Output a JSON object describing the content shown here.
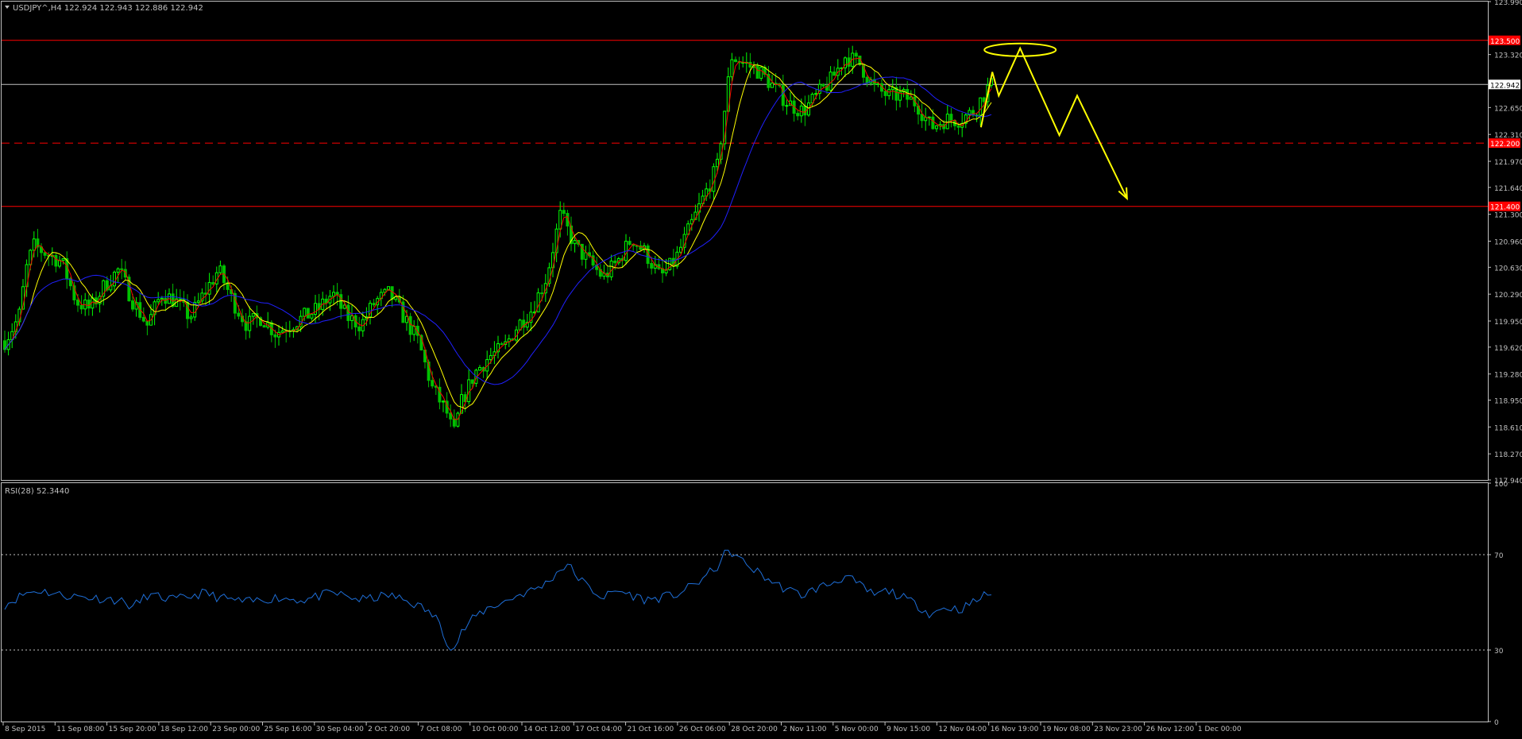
{
  "header": {
    "symbol_line": "USDJPY^,H4  122.924 122.943 122.886 122.942",
    "rsi_label": "RSI(28) 52.3440"
  },
  "colors": {
    "background": "#000000",
    "frame": "#c0c0c0",
    "bull_candle": "#00ff00",
    "bear_candle": "#00c000",
    "ma_fast": "#ff0000",
    "ma_mid": "#ffff00",
    "ma_slow": "#2020ff",
    "rsi": "#1e6fd9",
    "resistance_line": "#ff0000",
    "projection": "#ffff00",
    "price_tag": "#ff0000",
    "text": "#c0c0c0"
  },
  "chart_data": [
    {
      "type": "candlestick",
      "timeframe": "H4",
      "symbol": "USDJPY^",
      "ohlc_current": {
        "open": 122.924,
        "high": 122.943,
        "low": 122.886,
        "close": 122.942
      },
      "price_axis": {
        "ylim": [
          117.94,
          123.99
        ],
        "ticks": [
          "123.990",
          "123.320",
          "122.650",
          "122.310",
          "121.970",
          "121.640",
          "121.300",
          "120.960",
          "120.630",
          "120.290",
          "119.950",
          "119.620",
          "119.280",
          "118.950",
          "118.610",
          "118.270",
          "117.940"
        ],
        "tick_values": [
          123.99,
          123.32,
          122.65,
          122.31,
          121.97,
          121.64,
          121.3,
          120.96,
          120.63,
          120.29,
          119.95,
          119.62,
          119.28,
          118.95,
          118.61,
          118.27,
          117.94
        ]
      },
      "time_axis": {
        "ticks": [
          "8 Sep 2015",
          "11 Sep 08:00",
          "15 Sep 20:00",
          "18 Sep 12:00",
          "23 Sep 00:00",
          "25 Sep 16:00",
          "30 Sep 04:00",
          "2 Oct 20:00",
          "7 Oct 08:00",
          "10 Oct 00:00",
          "14 Oct 12:00",
          "17 Oct 04:00",
          "21 Oct 16:00",
          "26 Oct 06:00",
          "28 Oct 20:00",
          "2 Nov 11:00",
          "5 Nov 00:00",
          "9 Nov 15:00",
          "12 Nov 04:00",
          "16 Nov 19:00",
          "19 Nov 08:00",
          "23 Nov 23:00",
          "26 Nov 12:00",
          "1 Dec 00:00"
        ]
      },
      "price_profile": [
        [
          0,
          119.7
        ],
        [
          2,
          120.0
        ],
        [
          3,
          120.6
        ],
        [
          4,
          120.9
        ],
        [
          6,
          120.8
        ],
        [
          8,
          120.7
        ],
        [
          10,
          120.2
        ],
        [
          12,
          120.1
        ],
        [
          14,
          120.4
        ],
        [
          16,
          120.6
        ],
        [
          18,
          120.2
        ],
        [
          20,
          119.9
        ],
        [
          22,
          120.3
        ],
        [
          24,
          120.2
        ],
        [
          26,
          120.0
        ],
        [
          28,
          120.3
        ],
        [
          30,
          120.6
        ],
        [
          32,
          120.2
        ],
        [
          34,
          119.9
        ],
        [
          36,
          120.0
        ],
        [
          38,
          119.8
        ],
        [
          40,
          119.9
        ],
        [
          42,
          120.0
        ],
        [
          44,
          120.1
        ],
        [
          46,
          120.3
        ],
        [
          48,
          120.0
        ],
        [
          50,
          119.9
        ],
        [
          52,
          120.2
        ],
        [
          54,
          120.3
        ],
        [
          56,
          120.0
        ],
        [
          58,
          119.7
        ],
        [
          60,
          119.1
        ],
        [
          62,
          118.8
        ],
        [
          63,
          118.5
        ],
        [
          64,
          118.9
        ],
        [
          66,
          119.3
        ],
        [
          68,
          119.5
        ],
        [
          70,
          119.6
        ],
        [
          72,
          119.9
        ],
        [
          74,
          120.1
        ],
        [
          76,
          120.5
        ],
        [
          78,
          121.3
        ],
        [
          80,
          120.9
        ],
        [
          82,
          120.7
        ],
        [
          84,
          120.5
        ],
        [
          86,
          120.7
        ],
        [
          88,
          121.0
        ],
        [
          90,
          120.8
        ],
        [
          92,
          120.5
        ],
        [
          94,
          120.7
        ],
        [
          96,
          121.1
        ],
        [
          98,
          121.5
        ],
        [
          100,
          121.9
        ],
        [
          101,
          122.6
        ],
        [
          102,
          123.3
        ],
        [
          104,
          123.2
        ],
        [
          106,
          123.1
        ],
        [
          108,
          122.9
        ],
        [
          110,
          122.7
        ],
        [
          112,
          122.6
        ],
        [
          114,
          122.8
        ],
        [
          116,
          123.0
        ],
        [
          118,
          123.3
        ],
        [
          120,
          123.2
        ],
        [
          122,
          122.9
        ],
        [
          124,
          122.8
        ],
        [
          126,
          122.8
        ],
        [
          128,
          122.7
        ],
        [
          130,
          122.4
        ],
        [
          132,
          122.5
        ],
        [
          134,
          122.5
        ],
        [
          136,
          122.6
        ],
        [
          138,
          122.9
        ],
        [
          139,
          122.94
        ]
      ],
      "moving_averages": [
        {
          "name": "fast",
          "color": "#ff0000"
        },
        {
          "name": "mid",
          "color": "#ffff00"
        },
        {
          "name": "slow",
          "color": "#2020ff"
        }
      ],
      "horizontal_levels": [
        {
          "price": 123.5,
          "tag": "123.500",
          "style": "solid",
          "color": "#ff0000"
        },
        {
          "price": 122.942,
          "tag": "122.942",
          "style": "solid",
          "color": "#c0c0c0"
        },
        {
          "price": 122.2,
          "tag": "122.200",
          "style": "dashed",
          "color": "#ff0000"
        },
        {
          "price": 121.4,
          "tag": "121.400",
          "style": "solid",
          "color": "#ff0000"
        }
      ],
      "annotations": [
        {
          "type": "ellipse",
          "color": "#ffff00",
          "around_price": 123.4
        },
        {
          "type": "projection_path",
          "color": "#ffff00",
          "points": [
            [
              137,
              122.4
            ],
            [
              138.6,
              123.1
            ],
            [
              139.5,
              122.8
            ],
            [
              142.5,
              123.4
            ],
            [
              148,
              122.3
            ],
            [
              150.5,
              122.8
            ],
            [
              157.5,
              121.5
            ]
          ]
        }
      ]
    },
    {
      "type": "line",
      "name": "RSI(28)",
      "current": 52.344,
      "ylim": [
        0,
        100
      ],
      "ticks": [
        "100",
        "70",
        "30",
        "0"
      ],
      "levels": [
        70,
        30
      ],
      "values": [
        [
          0,
          49
        ],
        [
          3,
          54
        ],
        [
          5,
          55
        ],
        [
          8,
          53
        ],
        [
          12,
          52
        ],
        [
          16,
          51
        ],
        [
          18,
          48
        ],
        [
          20,
          53
        ],
        [
          24,
          51
        ],
        [
          28,
          54
        ],
        [
          30,
          52
        ],
        [
          34,
          50
        ],
        [
          38,
          52
        ],
        [
          42,
          51
        ],
        [
          46,
          54
        ],
        [
          50,
          51
        ],
        [
          54,
          53
        ],
        [
          57,
          50
        ],
        [
          59,
          47
        ],
        [
          61,
          42
        ],
        [
          62,
          34
        ],
        [
          63,
          30
        ],
        [
          64,
          37
        ],
        [
          66,
          44
        ],
        [
          68,
          48
        ],
        [
          70,
          50
        ],
        [
          72,
          53
        ],
        [
          74,
          55
        ],
        [
          76,
          58
        ],
        [
          78,
          64
        ],
        [
          79,
          66
        ],
        [
          80,
          62
        ],
        [
          82,
          56
        ],
        [
          84,
          52
        ],
        [
          86,
          55
        ],
        [
          88,
          53
        ],
        [
          90,
          51
        ],
        [
          92,
          52
        ],
        [
          94,
          53
        ],
        [
          96,
          56
        ],
        [
          98,
          60
        ],
        [
          100,
          65
        ],
        [
          101,
          70
        ],
        [
          102,
          71
        ],
        [
          104,
          66
        ],
        [
          106,
          62
        ],
        [
          108,
          58
        ],
        [
          110,
          55
        ],
        [
          112,
          53
        ],
        [
          114,
          56
        ],
        [
          116,
          58
        ],
        [
          118,
          61
        ],
        [
          120,
          57
        ],
        [
          122,
          53
        ],
        [
          124,
          55
        ],
        [
          126,
          52
        ],
        [
          128,
          49
        ],
        [
          130,
          45
        ],
        [
          132,
          48
        ],
        [
          134,
          47
        ],
        [
          136,
          50
        ],
        [
          138,
          54
        ],
        [
          139,
          52.34
        ]
      ]
    }
  ]
}
